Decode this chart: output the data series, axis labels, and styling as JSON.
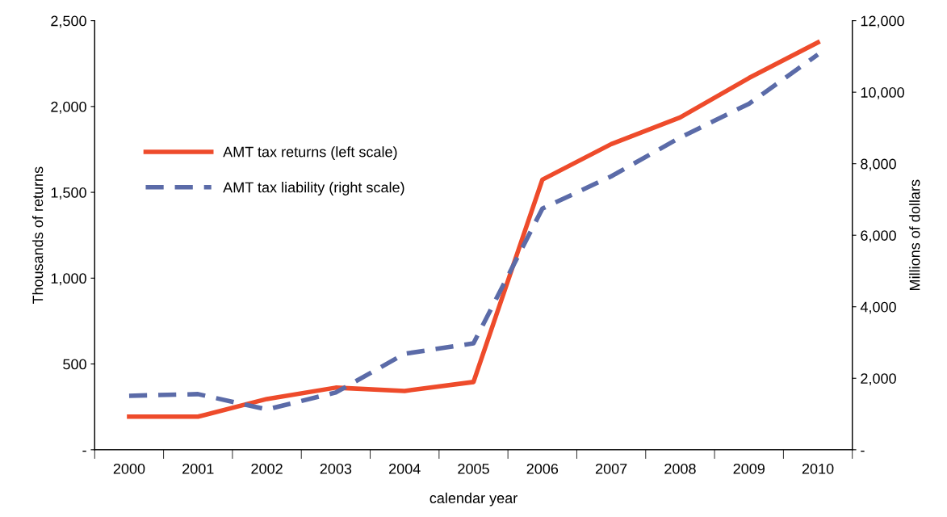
{
  "chart_data": {
    "type": "line",
    "xlabel": "calendar year",
    "ylabel": "Thousands of returns",
    "y2label": "Millions of dollars",
    "categories": [
      "2000",
      "2001",
      "2002",
      "2003",
      "2004",
      "2005",
      "2006",
      "2007",
      "2008",
      "2009",
      "2010"
    ],
    "series": [
      {
        "name": "AMT tax returns (left scale)",
        "color": "#ee4b2b",
        "line_style": "solid",
        "values": [
          193,
          193,
          296,
          362,
          343,
          395,
          1574,
          1781,
          1936,
          2166,
          2373
        ]
      },
      {
        "name": "AMT tax liability (right scale)",
        "color": "#5b6ba8",
        "line_style": "dashed",
        "axis": "y2",
        "values": [
          1511,
          1557,
          1128,
          1602,
          2685,
          2978,
          6745,
          7648,
          8731,
          9678,
          11054
        ]
      }
    ],
    "ylim": [
      0,
      2500
    ],
    "yticks": [
      {
        "value": 0,
        "label": "-"
      },
      {
        "value": 500,
        "label": "500"
      },
      {
        "value": 1000,
        "label": "1,000"
      },
      {
        "value": 1500,
        "label": "1,500"
      },
      {
        "value": 2000,
        "label": "2,000"
      },
      {
        "value": 2500,
        "label": "2,500"
      }
    ],
    "y2lim": [
      0,
      12000
    ],
    "y2ticks": [
      {
        "value": 0,
        "label": "-"
      },
      {
        "value": 2000,
        "label": "2,000"
      },
      {
        "value": 4000,
        "label": "4,000"
      },
      {
        "value": 6000,
        "label": "6,000"
      },
      {
        "value": 8000,
        "label": "8,000"
      },
      {
        "value": 10000,
        "label": "10,000"
      },
      {
        "value": 12000,
        "label": "12,000"
      }
    ],
    "legend": "center left",
    "grid": false,
    "marker": "none"
  }
}
